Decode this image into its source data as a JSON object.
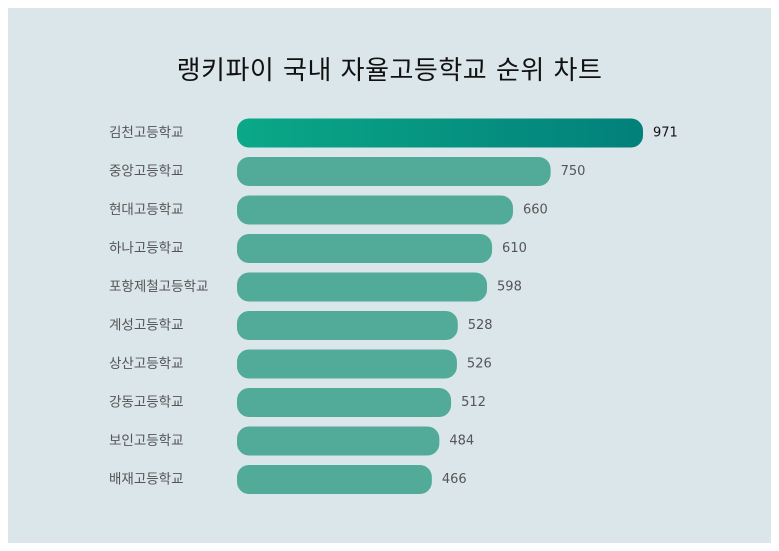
{
  "title": "랭키파이 국내 자율고등학교 순위 차트",
  "colors": {
    "background": "#dbe6ea",
    "bar": "#52aa99",
    "top_bar_start": "#0aa888",
    "top_bar_end": "#02807a"
  },
  "chart_data": {
    "type": "bar",
    "orientation": "horizontal",
    "title": "랭키파이 국내 자율고등학교 순위 차트",
    "categories": [
      "김천고등학교",
      "중앙고등학교",
      "현대고등학교",
      "하나고등학교",
      "포항제철고등학교",
      "계성고등학교",
      "상산고등학교",
      "강동고등학교",
      "보인고등학교",
      "배재고등학교"
    ],
    "values": [
      971,
      750,
      660,
      610,
      598,
      528,
      526,
      512,
      484,
      466
    ],
    "xlim": [
      0,
      971
    ],
    "grid": false,
    "legend": "none"
  }
}
